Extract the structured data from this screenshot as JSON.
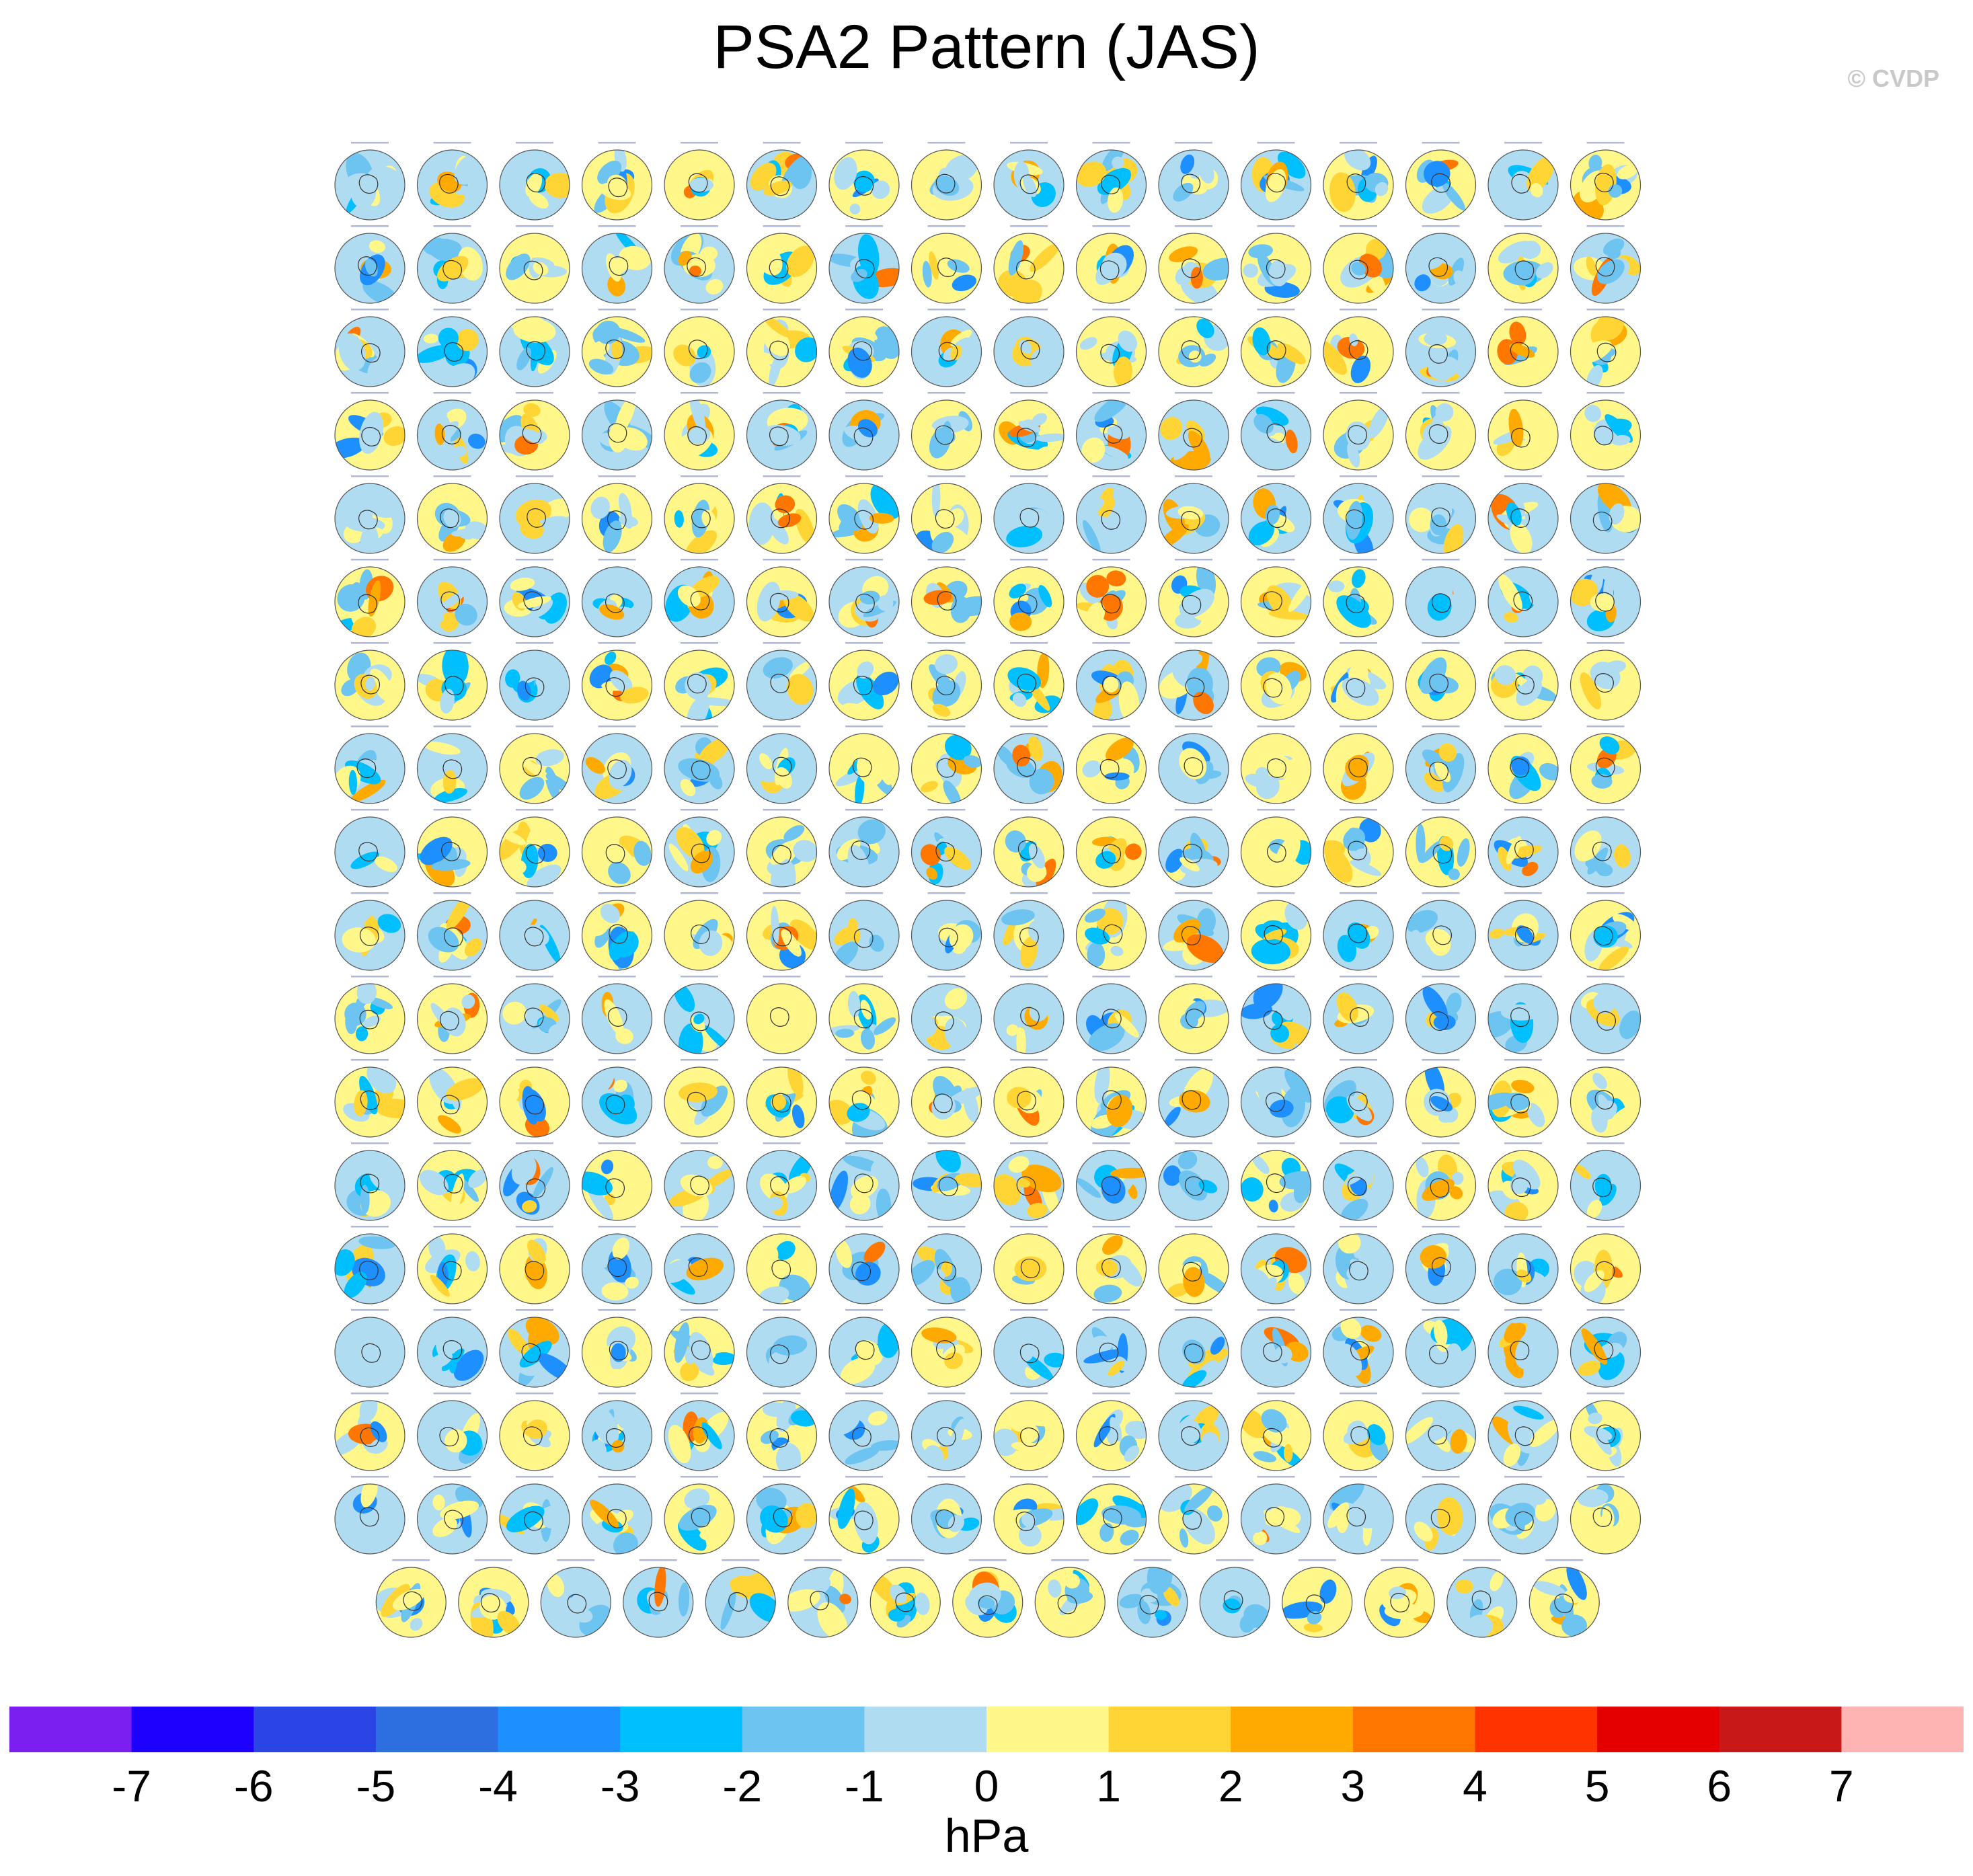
{
  "title": "PSA2 Pattern (JAS)",
  "credit": "© CVDP",
  "chart_data": {
    "type": "heatmap",
    "description_panels": {
      "rows_full": 17,
      "panels_per_full_row": 16,
      "last_row_panels": 15,
      "total_panels": 287,
      "projection": "south-polar-stereographic"
    },
    "colorbar": {
      "units": "hPa",
      "tick_labels": [
        "-7",
        "-6",
        "-5",
        "-4",
        "-3",
        "-2",
        "-1",
        "0",
        "1",
        "2",
        "3",
        "4",
        "5",
        "6",
        "7"
      ],
      "colors": [
        "#7a1ff0",
        "#1e00ff",
        "#2a44e6",
        "#2d6fe0",
        "#1e8fff",
        "#00bfff",
        "#6ec4f0",
        "#b0dcf2",
        "#fff78a",
        "#ffd535",
        "#ffaa00",
        "#ff7700",
        "#ff3300",
        "#e50000",
        "#c81818",
        "#ffb4b4"
      ]
    }
  }
}
